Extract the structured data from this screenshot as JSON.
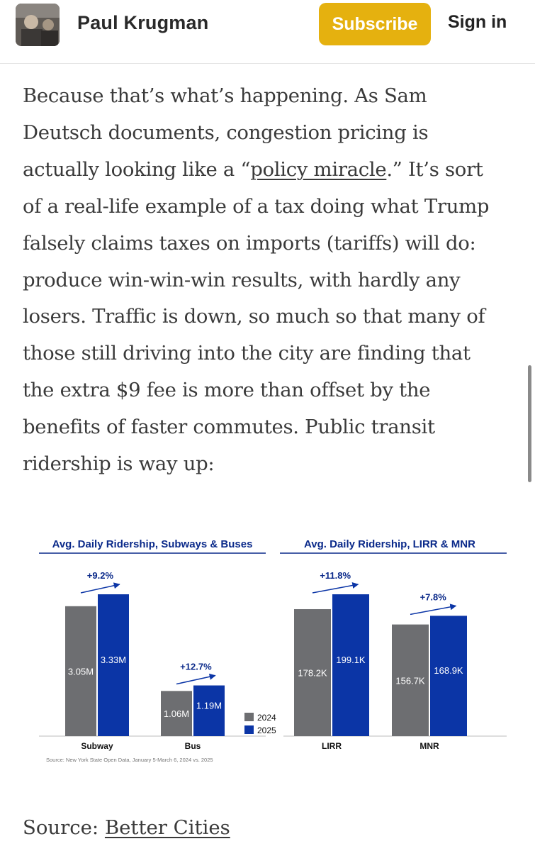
{
  "header": {
    "author": "Paul Krugman",
    "subscribe_label": "Subscribe",
    "signin_label": "Sign in"
  },
  "article": {
    "lines": [
      "Because that’s what’s happening. As Sam",
      "Deutsch documents, congestion pricing is",
      "actually looking like a “",
      "of a real-life example of a tax doing what Trump",
      "falsely claims taxes on imports (tariffs) will do:",
      "produce win-win-win results, with hardly any",
      "losers. Traffic is down, so much so that many of",
      "those still driving into the city are finding that",
      "the extra $9 fee is more than offset by the",
      "benefits of faster commutes. Public transit",
      "ridership is way up:"
    ],
    "link_text": "policy miracle",
    "after_link": ".” It’s sort"
  },
  "colors": {
    "subscribe_bg": "#e5b10f",
    "bar_2024": "#6d6e71",
    "bar_2025": "#0b35a6",
    "chart_title": "#0b2a8a"
  },
  "chart_data": [
    {
      "type": "bar",
      "title": "Avg. Daily Ridership, Subways & Buses",
      "categories": [
        "Subway",
        "Bus"
      ],
      "series": [
        {
          "name": "2024",
          "values": [
            3.05,
            1.06
          ],
          "labels": [
            "3.05M",
            "1.06M"
          ]
        },
        {
          "name": "2025",
          "values": [
            3.33,
            1.19
          ],
          "labels": [
            "3.33M",
            "1.19M"
          ]
        }
      ],
      "changes": [
        "+9.2%",
        "+12.7%"
      ],
      "legend": [
        "2024",
        "2025"
      ],
      "source": "Source: New York State Open Data, January 5-March 6, 2024 vs. 2025"
    },
    {
      "type": "bar",
      "title": "Avg. Daily Ridership, LIRR & MNR",
      "categories": [
        "LIRR",
        "MNR"
      ],
      "series": [
        {
          "name": "2024",
          "values": [
            178.2,
            156.7
          ],
          "labels": [
            "178.2K",
            "156.7K"
          ]
        },
        {
          "name": "2025",
          "values": [
            199.1,
            168.9
          ],
          "labels": [
            "199.1K",
            "168.9K"
          ]
        }
      ],
      "changes": [
        "+11.8%",
        "+7.8%"
      ]
    }
  ],
  "source_line": {
    "prefix": "Source: ",
    "link": "Better Cities"
  }
}
